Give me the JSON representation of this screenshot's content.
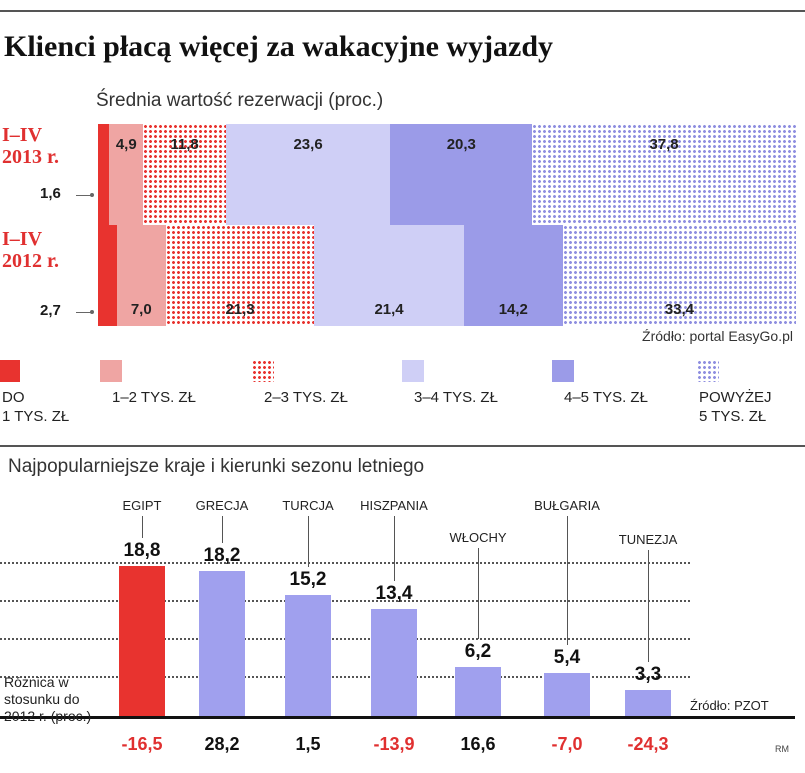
{
  "header": {
    "title": "Klienci płacą więcej za wakacyjne wyjazdy"
  },
  "colors": {
    "seg1": "#e8332f",
    "seg2": "#efa5a3",
    "seg3_dot": "#e8332f",
    "seg4": "#cfcff6",
    "seg5": "#9b9be8",
    "seg6_dot": "#8f8fe0",
    "highlight": "#e8332f",
    "bar": "#a0a0ee",
    "negative": "#e03030"
  },
  "chart_data": [
    {
      "type": "bar",
      "subtype": "stacked-horizontal-100",
      "title": "Średnia wartość rezerwacji (proc.)",
      "categories": [
        "I-IV 2013 r.",
        "I-IV 2012 r."
      ],
      "series": [
        {
          "name": "DO 1 TYS. ZŁ",
          "values": [
            1.6,
            2.7
          ],
          "labels": [
            "1,6",
            "2,7"
          ],
          "pattern": "solid"
        },
        {
          "name": "1-2 TYS. ZŁ",
          "values": [
            4.9,
            7.0
          ],
          "labels": [
            "4,9",
            "7,0"
          ],
          "pattern": "solid"
        },
        {
          "name": "2-3 TYS. ZŁ",
          "values": [
            11.8,
            21.3
          ],
          "labels": [
            "11,8",
            "21,3"
          ],
          "pattern": "dots"
        },
        {
          "name": "3-4 TYS. ZŁ",
          "values": [
            23.6,
            21.4
          ],
          "labels": [
            "23,6",
            "21,4"
          ],
          "pattern": "solid"
        },
        {
          "name": "4-5 TYS. ZŁ",
          "values": [
            20.3,
            14.2
          ],
          "labels": [
            "20,3",
            "14,2"
          ],
          "pattern": "solid"
        },
        {
          "name": "POWYŻEJ 5 TYS. ZŁ",
          "values": [
            37.8,
            33.4
          ],
          "labels": [
            "37,8",
            "33,4"
          ],
          "pattern": "dots"
        }
      ],
      "category_labels": [
        {
          "line1": "I–IV",
          "line2": "2013 r."
        },
        {
          "line1": "I–IV",
          "line2": "2012 r."
        }
      ],
      "legend": [
        {
          "line1": "DO",
          "line2": "1 TYS. ZŁ"
        },
        {
          "line1": "1–2 TYS. ZŁ",
          "line2": ""
        },
        {
          "line1": "2–3 TYS. ZŁ",
          "line2": ""
        },
        {
          "line1": "3–4 TYS. ZŁ",
          "line2": ""
        },
        {
          "line1": "4–5 TYS. ZŁ",
          "line2": ""
        },
        {
          "line1": "POWYŻEJ",
          "line2": "5 TYS. ZŁ"
        }
      ],
      "legend_placement": "bottom",
      "source": "Źródło: portal EasyGo.pl"
    },
    {
      "type": "bar",
      "title": "Najpopularniejsze kraje i kierunki sezonu letniego",
      "categories": [
        "EGIPT",
        "GRECJA",
        "TURCJA",
        "HISZPANIA",
        "WŁOCHY",
        "BUŁGARIA",
        "TUNEZJA"
      ],
      "values": [
        18.8,
        18.2,
        15.2,
        13.4,
        6.2,
        5.4,
        3.3
      ],
      "value_labels": [
        "18,8",
        "18,2",
        "15,2",
        "13,4",
        "6,2",
        "5,4",
        "3,3"
      ],
      "change_label": "Różnica w stosunku do 2012 r. (proc.)",
      "change_values": [
        -16.5,
        28.2,
        1.5,
        -13.9,
        16.6,
        -7.0,
        -24.3
      ],
      "change_labels": [
        "-16,5",
        "28,2",
        "1,5",
        "-13,9",
        "16,6",
        "-7,0",
        "-24,3"
      ],
      "ylim": [
        0,
        20
      ],
      "grid": true,
      "source": "Źródło: PZOT"
    }
  ],
  "credit": "RM"
}
